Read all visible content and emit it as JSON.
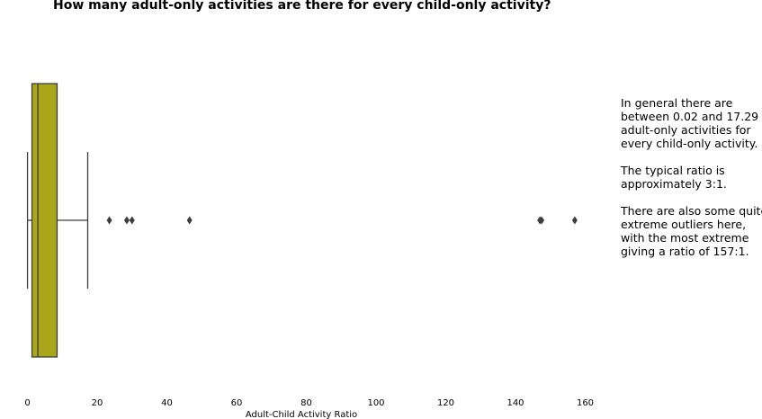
{
  "chart_data": {
    "type": "box",
    "title": "How many adult-only activities are there for every child-only activity?",
    "xlabel": "Adult-Child Activity Ratio",
    "ylabel": "",
    "orientation": "horizontal",
    "xlim": [
      -1,
      163
    ],
    "xticks": [
      0,
      20,
      40,
      60,
      80,
      100,
      120,
      140,
      160
    ],
    "xtick_labels": [
      "0",
      "20",
      "40",
      "60",
      "80",
      "100",
      "120",
      "140",
      "160"
    ],
    "grid": false,
    "box": {
      "whisker_low": 0.02,
      "q1": 1.3,
      "median": 3.0,
      "q3": 8.5,
      "whisker_high": 17.29,
      "outliers": [
        23.5,
        28.5,
        30.0,
        46.5,
        147.0,
        147.5,
        157.0
      ]
    },
    "box_color": "#aaa61a",
    "line_color": "#3d3d3d"
  },
  "annotation": {
    "para1": [
      "In general there are",
      "between 0.02 and 17.29",
      "adult-only activities for",
      "every child-only activity."
    ],
    "para2": [
      "The typical ratio is",
      "approximately 3:1."
    ],
    "para3": [
      "There are also some quite",
      "extreme outliers here,",
      "with the most extreme",
      "giving a ratio of 157:1."
    ]
  }
}
